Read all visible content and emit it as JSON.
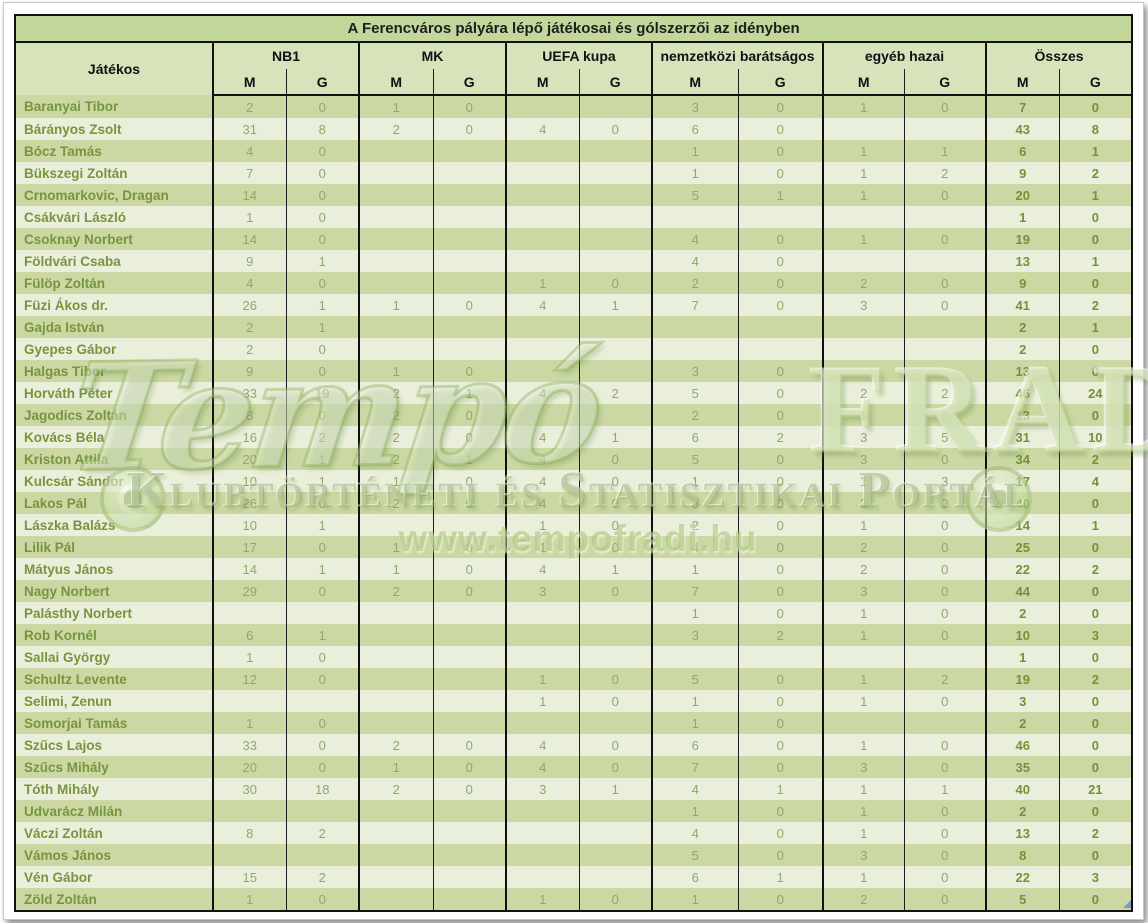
{
  "title": "A Ferencváros pályára lépő játékosai és gólszerzői az idényben",
  "columns": {
    "player": "Játékos",
    "groups": [
      {
        "label": "NB1"
      },
      {
        "label": "MK"
      },
      {
        "label": "UEFA kupa"
      },
      {
        "label": "nemzetközi barátságos"
      },
      {
        "label": "egyéb hazai"
      },
      {
        "label": "Összes"
      }
    ],
    "sub": {
      "m": "M",
      "g": "G"
    }
  },
  "players": [
    {
      "name": "Baranyai Tibor",
      "cells": [
        "2",
        "0",
        "1",
        "0",
        "",
        "",
        "3",
        "0",
        "1",
        "0",
        "7",
        "0"
      ]
    },
    {
      "name": "Bárányos Zsolt",
      "cells": [
        "31",
        "8",
        "2",
        "0",
        "4",
        "0",
        "6",
        "0",
        "",
        "",
        "43",
        "8"
      ]
    },
    {
      "name": "Bócz Tamás",
      "cells": [
        "4",
        "0",
        "",
        "",
        "",
        "",
        "1",
        "0",
        "1",
        "1",
        "6",
        "1"
      ]
    },
    {
      "name": "Bükszegi Zoltán",
      "cells": [
        "7",
        "0",
        "",
        "",
        "",
        "",
        "1",
        "0",
        "1",
        "2",
        "9",
        "2"
      ]
    },
    {
      "name": "Crnomarkovic, Dragan",
      "cells": [
        "14",
        "0",
        "",
        "",
        "",
        "",
        "5",
        "1",
        "1",
        "0",
        "20",
        "1"
      ]
    },
    {
      "name": "Csákvári László",
      "cells": [
        "1",
        "0",
        "",
        "",
        "",
        "",
        "",
        "",
        "",
        "",
        "1",
        "0"
      ]
    },
    {
      "name": "Csoknay Norbert",
      "cells": [
        "14",
        "0",
        "",
        "",
        "",
        "",
        "4",
        "0",
        "1",
        "0",
        "19",
        "0"
      ]
    },
    {
      "name": "Földvári Csaba",
      "cells": [
        "9",
        "1",
        "",
        "",
        "",
        "",
        "4",
        "0",
        "",
        "",
        "13",
        "1"
      ]
    },
    {
      "name": "Fülöp Zoltán",
      "cells": [
        "4",
        "0",
        "",
        "",
        "1",
        "0",
        "2",
        "0",
        "2",
        "0",
        "9",
        "0"
      ]
    },
    {
      "name": "Füzi Ákos dr.",
      "cells": [
        "26",
        "1",
        "1",
        "0",
        "4",
        "1",
        "7",
        "0",
        "3",
        "0",
        "41",
        "2"
      ]
    },
    {
      "name": "Gajda István",
      "cells": [
        "2",
        "1",
        "",
        "",
        "",
        "",
        "",
        "",
        "",
        "",
        "2",
        "1"
      ]
    },
    {
      "name": "Gyepes Gábor",
      "cells": [
        "2",
        "0",
        "",
        "",
        "",
        "",
        "",
        "",
        "",
        "",
        "2",
        "0"
      ]
    },
    {
      "name": "Halgas Tibor",
      "cells": [
        "9",
        "0",
        "1",
        "0",
        "",
        "",
        "3",
        "0",
        "",
        "",
        "13",
        "0"
      ]
    },
    {
      "name": "Horváth Péter",
      "cells": [
        "33",
        "19",
        "2",
        "1",
        "4",
        "2",
        "5",
        "0",
        "2",
        "2",
        "46",
        "24"
      ]
    },
    {
      "name": "Jagodics Zoltán",
      "cells": [
        "8",
        "0",
        "2",
        "0",
        "",
        "",
        "2",
        "0",
        "1",
        "0",
        "13",
        "0"
      ]
    },
    {
      "name": "Kovács Béla",
      "cells": [
        "16",
        "2",
        "2",
        "0",
        "4",
        "1",
        "6",
        "2",
        "3",
        "5",
        "31",
        "10"
      ]
    },
    {
      "name": "Kriston Attila",
      "cells": [
        "20",
        "1",
        "2",
        "1",
        "4",
        "0",
        "5",
        "0",
        "3",
        "0",
        "34",
        "2"
      ]
    },
    {
      "name": "Kulcsár Sándor",
      "cells": [
        "10",
        "1",
        "1",
        "0",
        "4",
        "0",
        "1",
        "0",
        "1",
        "3",
        "17",
        "4"
      ]
    },
    {
      "name": "Lakos Pál",
      "cells": [
        "26",
        "0",
        "2",
        "0",
        "4",
        "0",
        "5",
        "0",
        "3",
        "0",
        "40",
        "0"
      ]
    },
    {
      "name": "Lászka Balázs",
      "cells": [
        "10",
        "1",
        "",
        "",
        "1",
        "0",
        "2",
        "0",
        "1",
        "0",
        "14",
        "1"
      ]
    },
    {
      "name": "Lilik Pál",
      "cells": [
        "17",
        "0",
        "1",
        "0",
        "1",
        "0",
        "4",
        "0",
        "2",
        "0",
        "25",
        "0"
      ]
    },
    {
      "name": "Mátyus János",
      "cells": [
        "14",
        "1",
        "1",
        "0",
        "4",
        "1",
        "1",
        "0",
        "2",
        "0",
        "22",
        "2"
      ]
    },
    {
      "name": "Nagy Norbert",
      "cells": [
        "29",
        "0",
        "2",
        "0",
        "3",
        "0",
        "7",
        "0",
        "3",
        "0",
        "44",
        "0"
      ]
    },
    {
      "name": "Palásthy Norbert",
      "cells": [
        "",
        "",
        "",
        "",
        "",
        "",
        "1",
        "0",
        "1",
        "0",
        "2",
        "0"
      ]
    },
    {
      "name": "Rob Kornél",
      "cells": [
        "6",
        "1",
        "",
        "",
        "",
        "",
        "3",
        "2",
        "1",
        "0",
        "10",
        "3"
      ]
    },
    {
      "name": "Sallai György",
      "cells": [
        "1",
        "0",
        "",
        "",
        "",
        "",
        "",
        "",
        "",
        "",
        "1",
        "0"
      ]
    },
    {
      "name": "Schultz Levente",
      "cells": [
        "12",
        "0",
        "",
        "",
        "1",
        "0",
        "5",
        "0",
        "1",
        "2",
        "19",
        "2"
      ]
    },
    {
      "name": "Selimi, Zenun",
      "cells": [
        "",
        "",
        "",
        "",
        "1",
        "0",
        "1",
        "0",
        "1",
        "0",
        "3",
        "0"
      ]
    },
    {
      "name": "Somorjai Tamás",
      "cells": [
        "1",
        "0",
        "",
        "",
        "",
        "",
        "1",
        "0",
        "",
        "",
        "2",
        "0"
      ]
    },
    {
      "name": "Szűcs Lajos",
      "cells": [
        "33",
        "0",
        "2",
        "0",
        "4",
        "0",
        "6",
        "0",
        "1",
        "0",
        "46",
        "0"
      ]
    },
    {
      "name": "Szűcs Mihály",
      "cells": [
        "20",
        "0",
        "1",
        "0",
        "4",
        "0",
        "7",
        "0",
        "3",
        "0",
        "35",
        "0"
      ]
    },
    {
      "name": "Tóth Mihály",
      "cells": [
        "30",
        "18",
        "2",
        "0",
        "3",
        "1",
        "4",
        "1",
        "1",
        "1",
        "40",
        "21"
      ]
    },
    {
      "name": "Udvarácz Milán",
      "cells": [
        "",
        "",
        "",
        "",
        "",
        "",
        "1",
        "0",
        "1",
        "0",
        "2",
        "0"
      ]
    },
    {
      "name": "Váczi Zoltán",
      "cells": [
        "8",
        "2",
        "",
        "",
        "",
        "",
        "4",
        "0",
        "1",
        "0",
        "13",
        "2"
      ]
    },
    {
      "name": "Vámos János",
      "cells": [
        "",
        "",
        "",
        "",
        "",
        "",
        "5",
        "0",
        "3",
        "0",
        "8",
        "0"
      ]
    },
    {
      "name": "Vén Gábor",
      "cells": [
        "15",
        "2",
        "",
        "",
        "",
        "",
        "6",
        "1",
        "1",
        "0",
        "22",
        "3"
      ]
    },
    {
      "name": "Zöld Zoltán",
      "cells": [
        "1",
        "0",
        "",
        "",
        "1",
        "0",
        "1",
        "0",
        "2",
        "0",
        "5",
        "0"
      ]
    }
  ],
  "watermark": {
    "script_text": "Tempó",
    "fradi_text": "FRADI!",
    "portal_text": "Klubtörténeti és Statisztikai Portál",
    "url_text": "www.tempofradi.hu"
  },
  "colors": {
    "title_bar": "#c3d69b",
    "header_bg": "#d6e3bb",
    "row_dark": "#cbd8a3",
    "row_light": "#eaefdb",
    "name_text": "#77953d",
    "number_text": "#93a66a",
    "total_text": "#74923a"
  }
}
